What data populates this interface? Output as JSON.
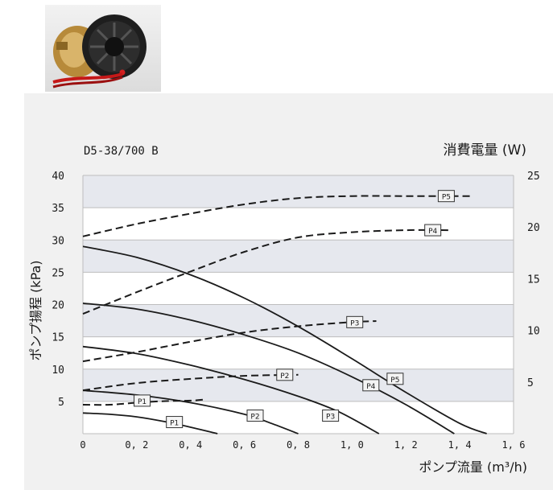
{
  "chart_data": {
    "type": "line",
    "model": "D5-38/700 B",
    "ylabel_left": "ポンプ揚程 (kPa)",
    "ylabel_right": "消費電量 (W)",
    "xlabel": "ポンプ流量 (m³/h)",
    "xlim": [
      0,
      1.6
    ],
    "ylim_left": [
      0,
      40
    ],
    "ylim_right": [
      0,
      25
    ],
    "x_ticks": [
      "0",
      "0, 2",
      "0, 4",
      "0, 6",
      "0, 8",
      "1, 0",
      "1, 2",
      "1, 4",
      "1, 6"
    ],
    "y_ticks_left": [
      "40",
      "35",
      "30",
      "25",
      "20",
      "15",
      "10",
      "5"
    ],
    "y_ticks_right": [
      "25",
      "20",
      "15",
      "10",
      "5"
    ],
    "grid": true,
    "head_series": [
      {
        "name": "P1",
        "label_pos": [
          0.34,
          1.8
        ],
        "points": [
          [
            0,
            3.2
          ],
          [
            0.1,
            3.0
          ],
          [
            0.2,
            2.6
          ],
          [
            0.3,
            1.9
          ],
          [
            0.4,
            1.0
          ],
          [
            0.5,
            0
          ]
        ]
      },
      {
        "name": "P2",
        "label_pos": [
          0.64,
          2.8
        ],
        "points": [
          [
            0,
            6.7
          ],
          [
            0.2,
            6.0
          ],
          [
            0.4,
            4.8
          ],
          [
            0.6,
            3.0
          ],
          [
            0.7,
            1.6
          ],
          [
            0.8,
            0
          ]
        ]
      },
      {
        "name": "P3",
        "label_pos": [
          0.92,
          2.8
        ],
        "points": [
          [
            0,
            13.5
          ],
          [
            0.2,
            12.4
          ],
          [
            0.4,
            10.6
          ],
          [
            0.6,
            8.4
          ],
          [
            0.8,
            5.8
          ],
          [
            0.95,
            3.4
          ],
          [
            1.1,
            0
          ]
        ]
      },
      {
        "name": "P4",
        "label_pos": [
          1.07,
          7.5
        ],
        "points": [
          [
            0,
            20.2
          ],
          [
            0.2,
            19.3
          ],
          [
            0.4,
            17.6
          ],
          [
            0.6,
            15.3
          ],
          [
            0.8,
            12.5
          ],
          [
            1.0,
            8.8
          ],
          [
            1.2,
            4.5
          ],
          [
            1.38,
            0
          ]
        ]
      },
      {
        "name": "P5",
        "label_pos": [
          1.16,
          8.5
        ],
        "points": [
          [
            0,
            29.0
          ],
          [
            0.2,
            27.3
          ],
          [
            0.4,
            24.6
          ],
          [
            0.6,
            21.0
          ],
          [
            0.8,
            16.6
          ],
          [
            1.0,
            11.6
          ],
          [
            1.2,
            6.4
          ],
          [
            1.4,
            1.6
          ],
          [
            1.5,
            0
          ]
        ]
      }
    ],
    "power_series": [
      {
        "name": "P1",
        "label_pos": [
          0.22,
          3.2
        ],
        "points": [
          [
            0,
            2.8
          ],
          [
            0.1,
            2.8
          ],
          [
            0.2,
            3.0
          ],
          [
            0.3,
            3.15
          ],
          [
            0.4,
            3.2
          ],
          [
            0.45,
            3.3
          ]
        ]
      },
      {
        "name": "P2",
        "label_pos": [
          0.75,
          5.7
        ],
        "points": [
          [
            0,
            4.2
          ],
          [
            0.2,
            4.9
          ],
          [
            0.4,
            5.3
          ],
          [
            0.6,
            5.6
          ],
          [
            0.8,
            5.7
          ]
        ]
      },
      {
        "name": "P3",
        "label_pos": [
          1.01,
          10.8
        ],
        "points": [
          [
            0,
            7.0
          ],
          [
            0.2,
            7.9
          ],
          [
            0.4,
            8.9
          ],
          [
            0.6,
            9.8
          ],
          [
            0.8,
            10.4
          ],
          [
            1.0,
            10.8
          ],
          [
            1.09,
            10.9
          ]
        ]
      },
      {
        "name": "P4",
        "label_pos": [
          1.3,
          19.7
        ],
        "points": [
          [
            0,
            11.6
          ],
          [
            0.2,
            13.7
          ],
          [
            0.4,
            15.7
          ],
          [
            0.6,
            17.6
          ],
          [
            0.8,
            19.0
          ],
          [
            1.0,
            19.5
          ],
          [
            1.2,
            19.7
          ],
          [
            1.37,
            19.7
          ]
        ]
      },
      {
        "name": "P5",
        "label_pos": [
          1.35,
          23.0
        ],
        "points": [
          [
            0,
            19.1
          ],
          [
            0.2,
            20.3
          ],
          [
            0.4,
            21.3
          ],
          [
            0.6,
            22.2
          ],
          [
            0.8,
            22.8
          ],
          [
            1.0,
            23.0
          ],
          [
            1.2,
            23.0
          ],
          [
            1.45,
            23.0
          ]
        ]
      }
    ]
  }
}
